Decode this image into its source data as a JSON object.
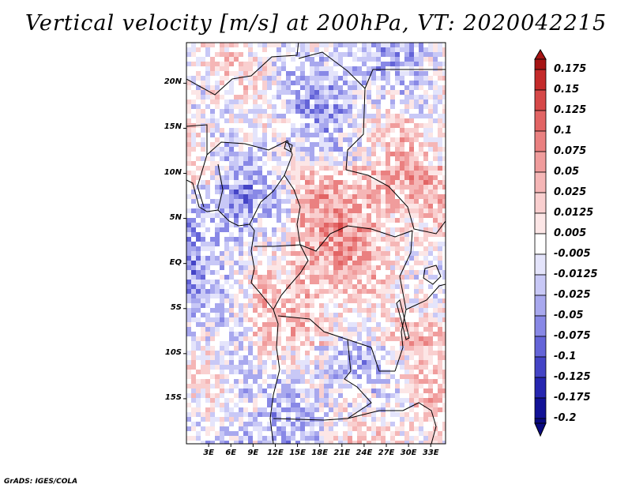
{
  "title": "Vertical velocity [m/s] at 200hPa, VT: 2020042215",
  "footer": "GrADS: IGES/COLA",
  "map": {
    "variable": "Vertical velocity",
    "units": "m/s",
    "level": "200hPa",
    "valid_time": "2020042215",
    "lon_range": [
      0,
      35
    ],
    "lat_range": [
      -20,
      24.5
    ],
    "lat_ticks": [
      {
        "value": 20,
        "label": "20N"
      },
      {
        "value": 15,
        "label": "15N"
      },
      {
        "value": 10,
        "label": "10N"
      },
      {
        "value": 5,
        "label": "5N"
      },
      {
        "value": 0,
        "label": "EQ"
      },
      {
        "value": -5,
        "label": "5S"
      },
      {
        "value": -10,
        "label": "10S"
      },
      {
        "value": -15,
        "label": "15S"
      }
    ],
    "lon_ticks": [
      {
        "value": 3,
        "label": "3E"
      },
      {
        "value": 6,
        "label": "6E"
      },
      {
        "value": 9,
        "label": "9E"
      },
      {
        "value": 12,
        "label": "12E"
      },
      {
        "value": 15,
        "label": "15E"
      },
      {
        "value": 18,
        "label": "18E"
      },
      {
        "value": 21,
        "label": "21E"
      },
      {
        "value": 24,
        "label": "24E"
      },
      {
        "value": 27,
        "label": "27E"
      },
      {
        "value": 30,
        "label": "30E"
      },
      {
        "value": 33,
        "label": "33E"
      }
    ]
  },
  "colorbar": {
    "labels": [
      "0.175",
      "0.15",
      "0.125",
      "0.1",
      "0.075",
      "0.05",
      "0.025",
      "0.0125",
      "0.005",
      "-0.005",
      "-0.0125",
      "-0.025",
      "-0.05",
      "-0.075",
      "-0.1",
      "-0.125",
      "-0.175",
      "-0.2"
    ],
    "colors": [
      "#a61414",
      "#c42a2a",
      "#d64848",
      "#e26464",
      "#ea8080",
      "#f09c9c",
      "#f5b6b6",
      "#f9cfcf",
      "#fce6e6",
      "#ffffff",
      "#e4e4fb",
      "#c8c8f6",
      "#a8a8ee",
      "#8888e6",
      "#6464d8",
      "#4444c6",
      "#2626b0",
      "#121296",
      "#0a0a80"
    ]
  }
}
